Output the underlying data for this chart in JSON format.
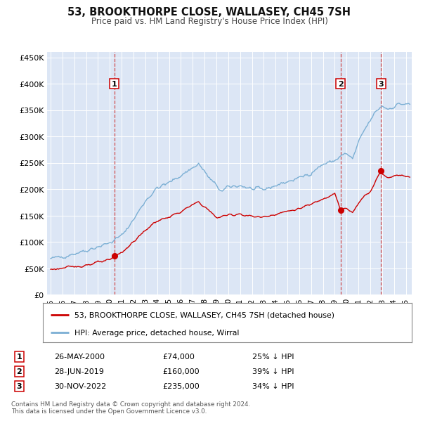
{
  "title": "53, BROOKTHORPE CLOSE, WALLASEY, CH45 7SH",
  "subtitle": "Price paid vs. HM Land Registry's House Price Index (HPI)",
  "background_color": "#ffffff",
  "plot_bg_color": "#dce6f5",
  "grid_color": "#c8d4e8",
  "ylim": [
    0,
    460000
  ],
  "yticks": [
    0,
    50000,
    100000,
    150000,
    200000,
    250000,
    300000,
    350000,
    400000,
    450000
  ],
  "ytick_labels": [
    "£0",
    "£50K",
    "£100K",
    "£150K",
    "£200K",
    "£250K",
    "£300K",
    "£350K",
    "£400K",
    "£450K"
  ],
  "sale_color": "#cc0000",
  "hpi_color": "#7bafd4",
  "marker_color": "#cc0000",
  "vline_color": "#cc3333",
  "sale_dates_num": [
    2000.38,
    2019.49,
    2022.91
  ],
  "sale_prices": [
    74000,
    160000,
    235000
  ],
  "sale_labels": [
    "1",
    "2",
    "3"
  ],
  "vline_dates": [
    2000.38,
    2019.49,
    2022.91
  ],
  "legend_sale_label": "53, BROOKTHORPE CLOSE, WALLASEY, CH45 7SH (detached house)",
  "legend_hpi_label": "HPI: Average price, detached house, Wirral",
  "table_rows": [
    [
      "1",
      "26-MAY-2000",
      "£74,000",
      "25% ↓ HPI"
    ],
    [
      "2",
      "28-JUN-2019",
      "£160,000",
      "39% ↓ HPI"
    ],
    [
      "3",
      "30-NOV-2022",
      "£235,000",
      "34% ↓ HPI"
    ]
  ],
  "footnote": "Contains HM Land Registry data © Crown copyright and database right 2024.\nThis data is licensed under the Open Government Licence v3.0.",
  "xlim_start": 1994.7,
  "xlim_end": 2025.5,
  "xtick_years": [
    1995,
    1996,
    1997,
    1998,
    1999,
    2000,
    2001,
    2002,
    2003,
    2004,
    2005,
    2006,
    2007,
    2008,
    2009,
    2010,
    2011,
    2012,
    2013,
    2014,
    2015,
    2016,
    2017,
    2018,
    2019,
    2020,
    2021,
    2022,
    2023,
    2024,
    2025
  ],
  "hpi_anchors": [
    [
      1995.0,
      68000
    ],
    [
      1996.0,
      72000
    ],
    [
      1997.0,
      78000
    ],
    [
      1998.0,
      84000
    ],
    [
      1999.0,
      91000
    ],
    [
      2000.0,
      98000
    ],
    [
      2001.0,
      112000
    ],
    [
      2002.0,
      142000
    ],
    [
      2003.0,
      178000
    ],
    [
      2004.0,
      202000
    ],
    [
      2005.0,
      212000
    ],
    [
      2006.0,
      226000
    ],
    [
      2007.5,
      248000
    ],
    [
      2008.5,
      218000
    ],
    [
      2009.5,
      195000
    ],
    [
      2010.0,
      204000
    ],
    [
      2011.0,
      207000
    ],
    [
      2012.0,
      200000
    ],
    [
      2013.0,
      199000
    ],
    [
      2014.0,
      207000
    ],
    [
      2015.0,
      214000
    ],
    [
      2016.0,
      221000
    ],
    [
      2017.0,
      231000
    ],
    [
      2018.0,
      247000
    ],
    [
      2019.0,
      254000
    ],
    [
      2019.5,
      263000
    ],
    [
      2020.0,
      267000
    ],
    [
      2020.5,
      257000
    ],
    [
      2021.0,
      288000
    ],
    [
      2021.5,
      312000
    ],
    [
      2022.0,
      330000
    ],
    [
      2022.5,
      348000
    ],
    [
      2023.0,
      358000
    ],
    [
      2023.5,
      352000
    ],
    [
      2024.0,
      357000
    ],
    [
      2024.5,
      362000
    ],
    [
      2025.3,
      360000
    ]
  ],
  "sale_anchors": [
    [
      1995.0,
      48000
    ],
    [
      1996.0,
      50000
    ],
    [
      1997.0,
      53000
    ],
    [
      1998.0,
      56000
    ],
    [
      1999.0,
      61000
    ],
    [
      2000.0,
      65000
    ],
    [
      2000.38,
      74000
    ],
    [
      2001.0,
      80000
    ],
    [
      2002.0,
      100000
    ],
    [
      2003.0,
      122000
    ],
    [
      2004.0,
      140000
    ],
    [
      2005.0,
      147000
    ],
    [
      2006.0,
      157000
    ],
    [
      2007.0,
      170000
    ],
    [
      2007.5,
      176000
    ],
    [
      2008.5,
      157000
    ],
    [
      2009.0,
      146000
    ],
    [
      2010.0,
      151000
    ],
    [
      2011.0,
      153000
    ],
    [
      2012.0,
      148000
    ],
    [
      2013.0,
      147000
    ],
    [
      2014.0,
      153000
    ],
    [
      2015.0,
      158000
    ],
    [
      2016.0,
      163000
    ],
    [
      2017.0,
      171000
    ],
    [
      2018.0,
      182000
    ],
    [
      2019.0,
      193000
    ],
    [
      2019.49,
      160000
    ],
    [
      2020.0,
      163000
    ],
    [
      2020.5,
      155000
    ],
    [
      2021.0,
      172000
    ],
    [
      2021.5,
      188000
    ],
    [
      2022.0,
      196000
    ],
    [
      2022.91,
      235000
    ],
    [
      2023.0,
      228000
    ],
    [
      2023.5,
      222000
    ],
    [
      2024.0,
      225000
    ],
    [
      2024.5,
      228000
    ],
    [
      2025.3,
      223000
    ]
  ]
}
